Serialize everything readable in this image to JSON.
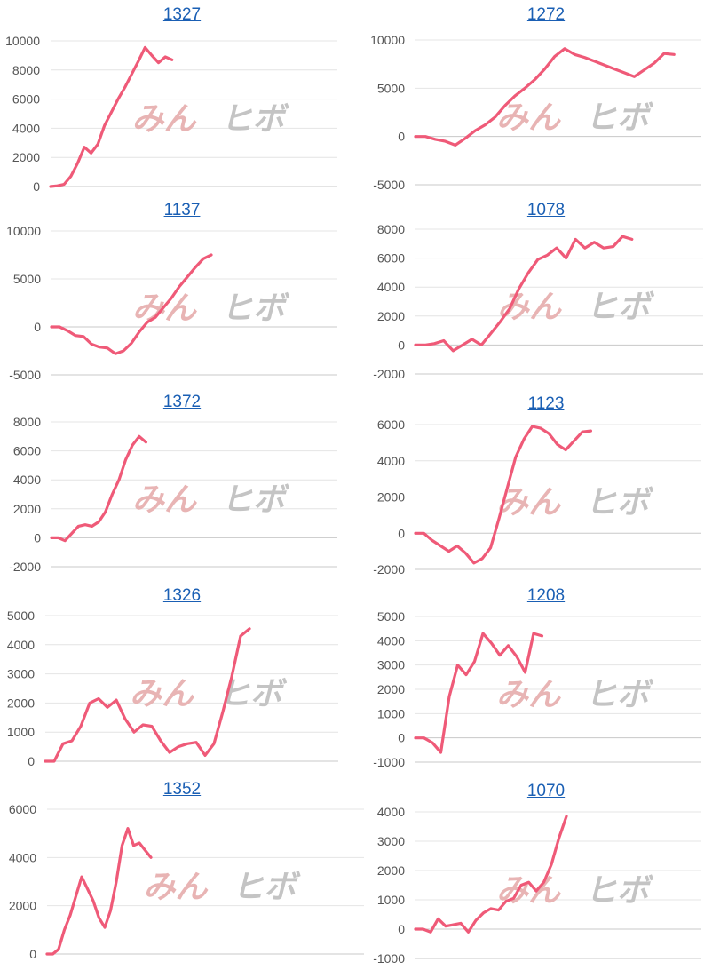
{
  "watermark": {
    "part1": "みん",
    "part2": "ヒボ"
  },
  "colors": {
    "series": "#ef5a78",
    "link": "#1a5fb4",
    "grid": "#e4e4e4",
    "axis": "#c8c8c8"
  },
  "chart_data": [
    {
      "type": "line",
      "title": "1327",
      "ylim": [
        0,
        10000
      ],
      "yticks": [
        0,
        2000,
        4000,
        6000,
        8000,
        10000
      ],
      "values": [
        0,
        50,
        150,
        700,
        1600,
        2700,
        2300,
        2900,
        4200,
        5100,
        6000,
        6800,
        7700,
        8600,
        9550,
        9000,
        8500,
        8900,
        8700
      ]
    },
    {
      "type": "line",
      "title": "1272",
      "ylim": [
        -5000,
        10000
      ],
      "yticks": [
        -5000,
        0,
        5000,
        10000
      ],
      "values": [
        0,
        0,
        -300,
        -500,
        -900,
        -200,
        600,
        1200,
        2000,
        3200,
        4200,
        5000,
        5900,
        7000,
        8300,
        9100,
        8500,
        8200,
        7800,
        7400,
        7000,
        6600,
        6200,
        6900,
        7600,
        8600,
        8500
      ]
    },
    {
      "type": "line",
      "title": "1137",
      "ylim": [
        -5000,
        10000
      ],
      "yticks": [
        -5000,
        0,
        5000,
        10000
      ],
      "values": [
        0,
        0,
        -400,
        -900,
        -1000,
        -1800,
        -2100,
        -2200,
        -2800,
        -2500,
        -1700,
        -500,
        500,
        1000,
        2000,
        3000,
        4200,
        5200,
        6200,
        7100,
        7500
      ]
    },
    {
      "type": "line",
      "title": "1078",
      "ylim": [
        -2000,
        8000
      ],
      "yticks": [
        -2000,
        0,
        2000,
        4000,
        6000,
        8000
      ],
      "values": [
        0,
        0,
        100,
        300,
        -400,
        0,
        400,
        0,
        800,
        1600,
        2500,
        3900,
        5000,
        5900,
        6200,
        6700,
        6000,
        7300,
        6700,
        7100,
        6700,
        6800,
        7500,
        7300
      ]
    },
    {
      "type": "line",
      "title": "1372",
      "ylim": [
        -2000,
        8000
      ],
      "yticks": [
        -2000,
        0,
        2000,
        4000,
        6000,
        8000
      ],
      "values": [
        0,
        0,
        -200,
        300,
        800,
        900,
        800,
        1100,
        1800,
        3000,
        4000,
        5400,
        6400,
        7000,
        6600
      ]
    },
    {
      "type": "line",
      "title": "1123",
      "ylim": [
        -2000,
        6000
      ],
      "yticks": [
        -2000,
        0,
        2000,
        4000,
        6000
      ],
      "values": [
        0,
        0,
        -400,
        -700,
        -1000,
        -700,
        -1100,
        -1650,
        -1400,
        -800,
        800,
        2500,
        4200,
        5200,
        5900,
        5800,
        5500,
        4900,
        4600,
        5100,
        5600,
        5650
      ]
    },
    {
      "type": "line",
      "title": "1326",
      "ylim": [
        0,
        5000
      ],
      "yticks": [
        0,
        1000,
        2000,
        3000,
        4000,
        5000
      ],
      "values": [
        0,
        0,
        600,
        700,
        1200,
        2000,
        2150,
        1850,
        2100,
        1450,
        1000,
        1250,
        1200,
        700,
        300,
        500,
        600,
        650,
        200,
        600,
        1700,
        2900,
        4300,
        4550
      ]
    },
    {
      "type": "line",
      "title": "1208",
      "ylim": [
        -1000,
        5000
      ],
      "yticks": [
        -1000,
        0,
        1000,
        2000,
        3000,
        4000,
        5000
      ],
      "values": [
        0,
        0,
        -200,
        -600,
        1700,
        3000,
        2600,
        3150,
        4300,
        3900,
        3400,
        3800,
        3350,
        2700,
        4300,
        4200
      ]
    },
    {
      "type": "line",
      "title": "1352",
      "ylim": [
        0,
        6000
      ],
      "yticks": [
        0,
        2000,
        4000,
        6000
      ],
      "values": [
        0,
        0,
        200,
        1000,
        1600,
        2400,
        3200,
        2700,
        2200,
        1500,
        1100,
        1800,
        3000,
        4500,
        5200,
        4500,
        4600,
        4300,
        4000
      ]
    },
    {
      "type": "line",
      "title": "1070",
      "ylim": [
        -1000,
        4000
      ],
      "yticks": [
        -1000,
        0,
        1000,
        2000,
        3000,
        4000
      ],
      "values": [
        0,
        0,
        -100,
        350,
        100,
        150,
        200,
        -100,
        300,
        550,
        700,
        650,
        950,
        1050,
        1500,
        1600,
        1300,
        1600,
        2200,
        3100,
        3850
      ]
    }
  ]
}
